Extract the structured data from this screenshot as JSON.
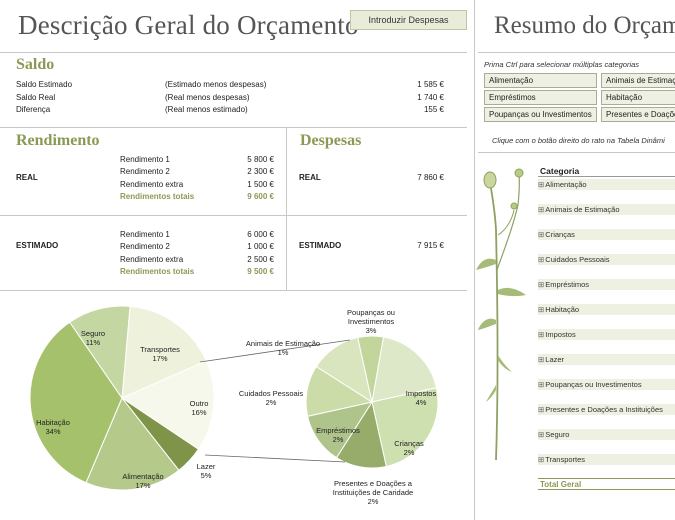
{
  "overview": {
    "title": "Descrição Geral do Orçamento",
    "enter_expenses_button": "Introduzir Despesas"
  },
  "saldo": {
    "heading": "Saldo",
    "rows": [
      {
        "label": "Saldo Estimado",
        "desc": "(Estimado menos despesas)",
        "value": "1 585 €"
      },
      {
        "label": "Saldo Real",
        "desc": "(Real menos despesas)",
        "value": "1 740 €"
      },
      {
        "label": "Diferença",
        "desc": "(Real menos estimado)",
        "value": "155 €"
      }
    ]
  },
  "rendimento": {
    "heading": "Rendimento",
    "real": {
      "label": "REAL",
      "items": [
        {
          "label": "Rendimento 1",
          "value": "5 800 €"
        },
        {
          "label": "Rendimento 2",
          "value": "2 300 €"
        },
        {
          "label": "Rendimento extra",
          "value": "1 500 €"
        }
      ],
      "total_label": "Rendimentos totais",
      "total_value": "9 600 €"
    },
    "estimado": {
      "label": "ESTIMADO",
      "items": [
        {
          "label": "Rendimento 1",
          "value": "6 000 €"
        },
        {
          "label": "Rendimento 2",
          "value": "1 000 €"
        },
        {
          "label": "Rendimento extra",
          "value": "2 500 €"
        }
      ],
      "total_label": "Rendimentos totais",
      "total_value": "9 500 €"
    }
  },
  "despesas": {
    "heading": "Despesas",
    "real": {
      "label": "REAL",
      "value": "7 860 €"
    },
    "estimado": {
      "label": "ESTIMADO",
      "value": "7 915 €"
    }
  },
  "summary": {
    "title": "Resumo do Orçam",
    "hint": "Prima Ctrl para selecionar múltiplas categorias",
    "slicer_items": [
      "Alimentação",
      "Animais de Estimaç",
      "Empréstimos",
      "Habitação",
      "Poupanças ou Investimentos",
      "Presentes e Doaçõe"
    ],
    "right_click_note": "Clique com o botão direito do rato na Tabela Dinâmi",
    "category_header": "Categoria",
    "categories": [
      "Alimentação",
      "Animais de Estimação",
      "Crianças",
      "Cuidados Pessoais",
      "Empréstimos",
      "Habitação",
      "Impostos",
      "Lazer",
      "Poupanças ou Investimentos",
      "Presentes e Doações a Instituições",
      "Seguro",
      "Transportes"
    ],
    "expand_symbol": "⊞",
    "grand_total": "Total Geral"
  },
  "chart_data": {
    "type": "pie",
    "subtype": "pie-of-pie",
    "title": "",
    "main": [
      {
        "label": "Transportes",
        "pct": "17%",
        "value": 17,
        "color": "#eef2dc"
      },
      {
        "label": "Outro",
        "pct": "16%",
        "value": 16,
        "color": "#f6f8ec"
      },
      {
        "label": "Lazer",
        "pct": "5%",
        "value": 5,
        "color": "#7f9448"
      },
      {
        "label": "Alimentação",
        "pct": "17%",
        "value": 17,
        "color": "#b4c98a"
      },
      {
        "label": "Habitação",
        "pct": "34%",
        "value": 34,
        "color": "#a6c16c"
      },
      {
        "label": "Seguro",
        "pct": "11%",
        "value": 11,
        "color": "#c4d6a2"
      }
    ],
    "secondary": [
      {
        "label": "Poupanças ou Investimentos",
        "pct": "3%",
        "value": 3,
        "color": "#dde8c8"
      },
      {
        "label": "Impostos",
        "pct": "4%",
        "value": 4,
        "color": "#cedfb0"
      },
      {
        "label": "Crianças",
        "pct": "2%",
        "value": 2,
        "color": "#97ab6a"
      },
      {
        "label": "Presentes e Doações a Instituições de Caridade",
        "pct": "2%",
        "value": 2,
        "color": "#aec48a"
      },
      {
        "label": "Empréstimos",
        "pct": "2%",
        "value": 2,
        "color": "#cbdca8"
      },
      {
        "label": "Cuidados Pessoais",
        "pct": "2%",
        "value": 2,
        "color": "#d8e5bf"
      },
      {
        "label": "Animais de Estimação",
        "pct": "1%",
        "value": 1,
        "color": "#c2d69c"
      }
    ]
  }
}
